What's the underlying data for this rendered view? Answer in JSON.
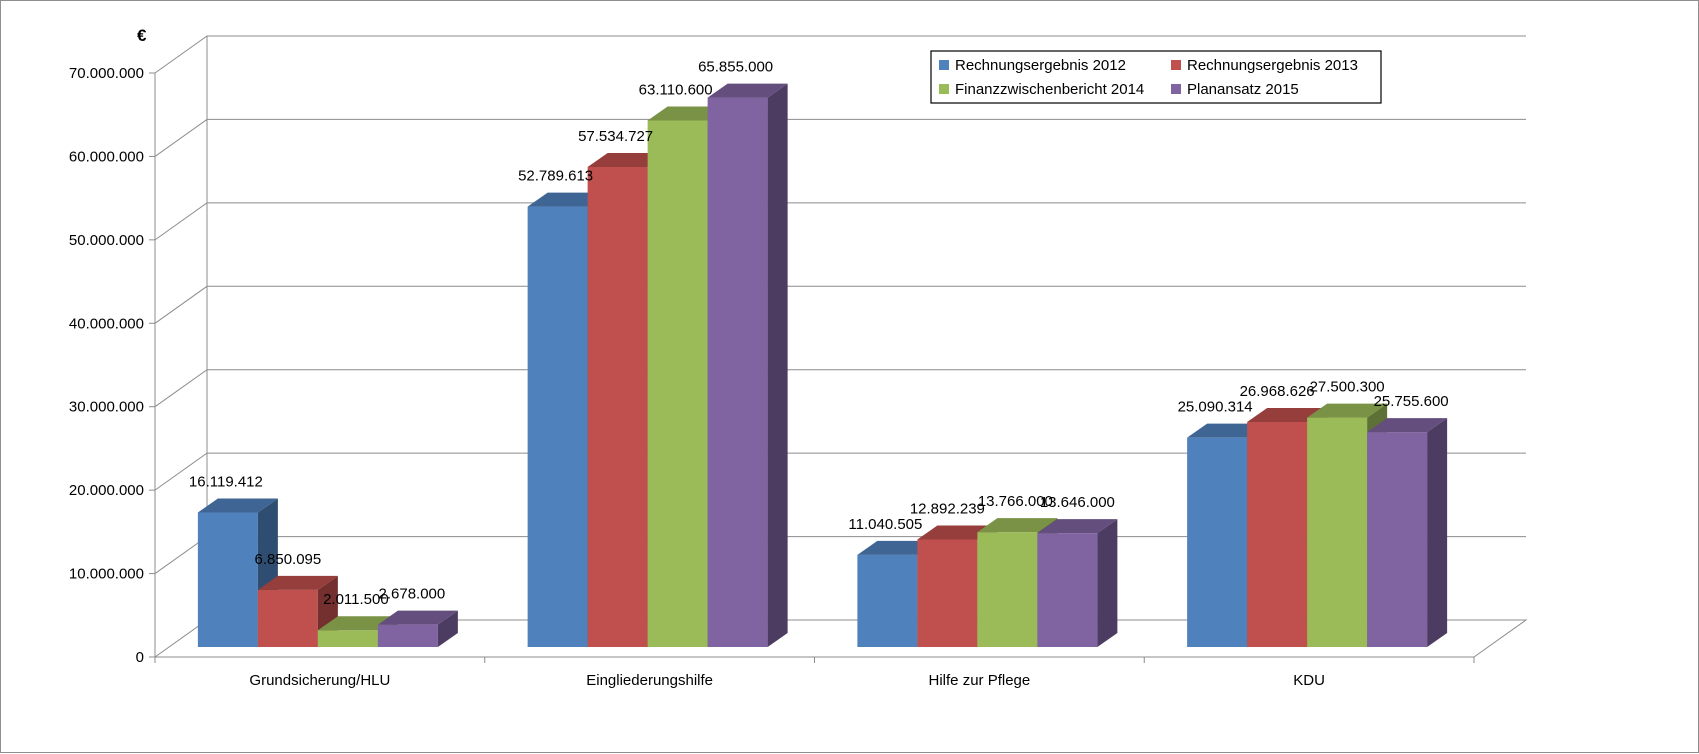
{
  "chart_data": {
    "type": "bar",
    "style": "3d-clustered-column",
    "unit_label": "€",
    "categories": [
      "Grundsicherung/HLU",
      "Eingliederungshilfe",
      "Hilfe zur Pflege",
      "KDU"
    ],
    "series": [
      {
        "name": "Rechnungsergebnis 2012",
        "color": "#4f81bd",
        "values": [
          16119412,
          52789613,
          11040505,
          25090314
        ],
        "labels": [
          "16.119.412",
          "52.789.613",
          "11.040.505",
          "25.090.314"
        ]
      },
      {
        "name": "Rechnungsergebnis 2013",
        "color": "#c0504d",
        "values": [
          6850095,
          57534727,
          12892239,
          26968626
        ],
        "labels": [
          "6.850.095",
          "57.534.727",
          "12.892.239",
          "26.968.626"
        ]
      },
      {
        "name": "Finanzzwischenbericht 2014",
        "color": "#9bbb59",
        "values": [
          2011500,
          63110600,
          13766000,
          27500300
        ],
        "labels": [
          "2.011.500",
          "63.110.600",
          "13.766.000",
          "27.500.300"
        ]
      },
      {
        "name": "Planansatz 2015",
        "color": "#8064a2",
        "values": [
          2678000,
          65855000,
          13646000,
          25755600
        ],
        "labels": [
          "2.678.000",
          "65.855.000",
          "13.646.000",
          "25.755.600"
        ]
      }
    ],
    "ylim": [
      0,
      70000000
    ],
    "yticks": [
      0,
      10000000,
      20000000,
      30000000,
      40000000,
      50000000,
      60000000,
      70000000
    ],
    "ytick_labels": [
      "0",
      "10.000.000",
      "20.000.000",
      "30.000.000",
      "40.000.000",
      "50.000.000",
      "60.000.000",
      "70.000.000"
    ],
    "grid": true,
    "legend_position": "top-right"
  }
}
